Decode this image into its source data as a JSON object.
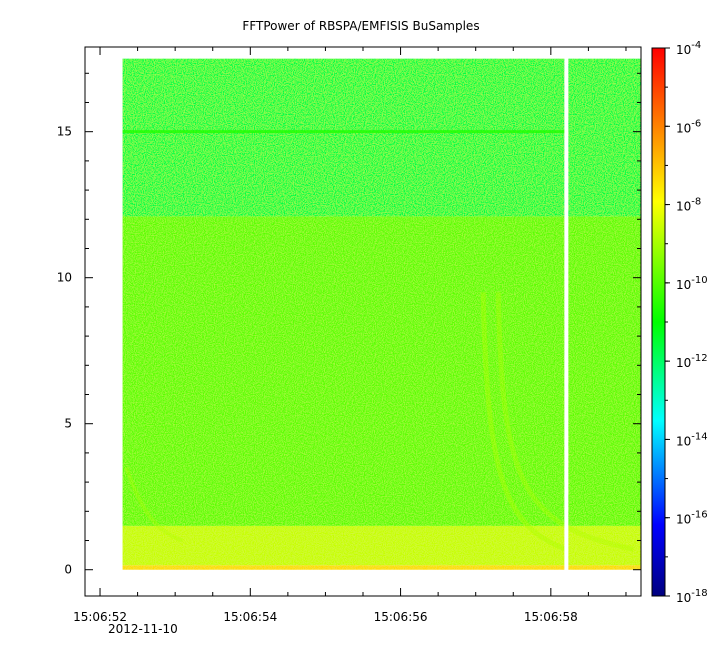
{
  "chart_data": {
    "type": "heatmap",
    "title": "FFTPower of RBSPA/EMFISIS  BuSamples",
    "xlabel": "",
    "ylabel": "",
    "date_label": "2012-11-10",
    "x_ticks": [
      "15:06:52",
      "15:06:54",
      "15:06:56",
      "15:06:58"
    ],
    "x_range": [
      "15:06:51.8",
      "15:06:59.2"
    ],
    "data_time_range": [
      "15:06:52.3",
      "15:06:59.2"
    ],
    "data_gap_at": "15:06:58.2",
    "y_ticks": [
      0,
      5,
      10,
      15
    ],
    "ylim": [
      -0.9,
      17.9
    ],
    "data_y_range": [
      0,
      17.5
    ],
    "z_scale": "log",
    "z_range": [
      1e-18,
      0.0001
    ],
    "colorbar_ticks": [
      {
        "base": "10",
        "exp": "-4",
        "value": 0.0001
      },
      {
        "base": "10",
        "exp": "-6",
        "value": 1e-06
      },
      {
        "base": "10",
        "exp": "-8",
        "value": 1e-08
      },
      {
        "base": "10",
        "exp": "-10",
        "value": 1e-10
      },
      {
        "base": "10",
        "exp": "-12",
        "value": 1e-12
      },
      {
        "base": "10",
        "exp": "-14",
        "value": 1e-14
      },
      {
        "base": "10",
        "exp": "-16",
        "value": 1e-16
      },
      {
        "base": "10",
        "exp": "-18",
        "value": 1e-18
      }
    ],
    "regions": [
      {
        "y_from": 12.1,
        "y_to": 17.5,
        "power_log10": -11.7
      },
      {
        "y_from": 1.5,
        "y_to": 12.1,
        "power_log10": -9.9
      },
      {
        "y_from": 0.15,
        "y_to": 1.5,
        "power_log10": -8.6
      },
      {
        "y_from": 0.0,
        "y_to": 0.15,
        "power_log10": -7.4
      }
    ],
    "colormap": [
      "#00007f",
      "#0000ff",
      "#00ffff",
      "#00ff00",
      "#ffff00",
      "#ff0000"
    ]
  }
}
